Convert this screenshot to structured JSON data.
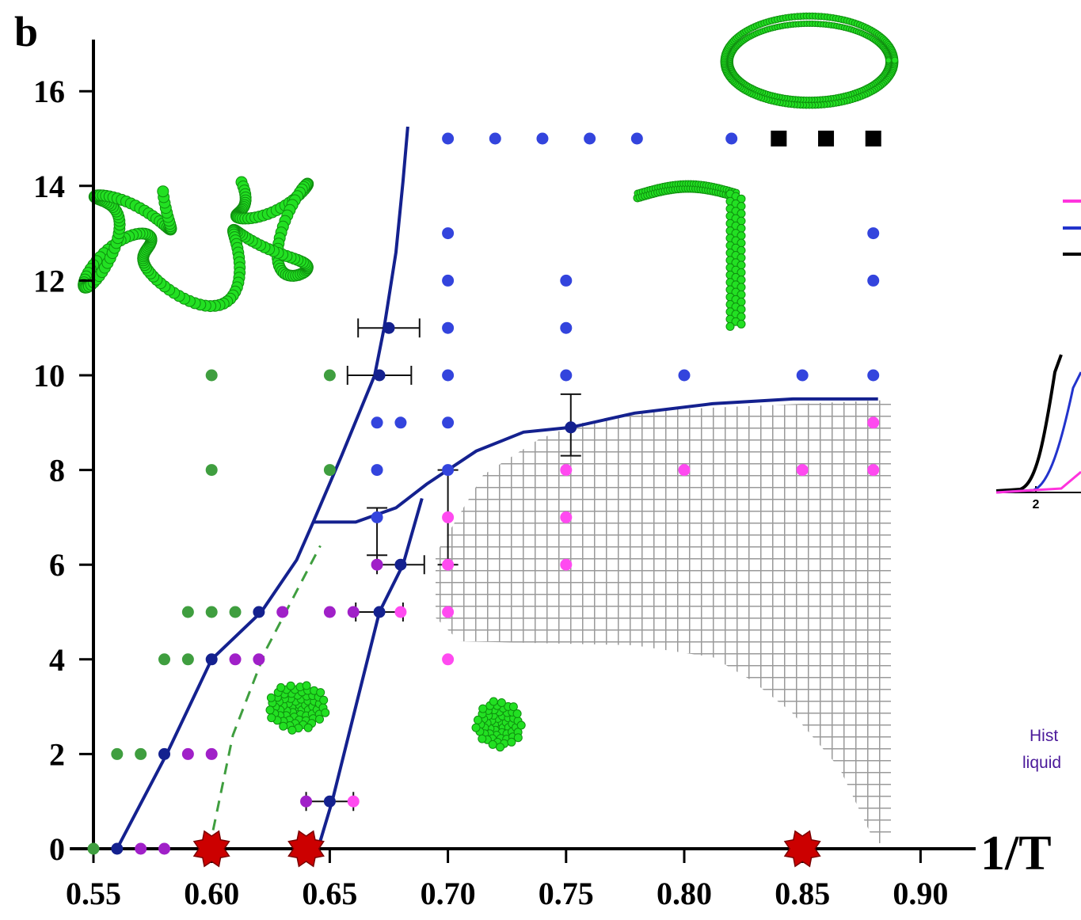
{
  "chart_data": {
    "type": "scatter",
    "panel_label": "b",
    "xlabel": "1/T",
    "xlim": [
      0.54,
      0.92
    ],
    "ylim": [
      0,
      17
    ],
    "xticks": [
      0.55,
      {
        "value": 0.6,
        "label": "0.60"
      },
      0.65,
      {
        "value": 0.7,
        "label": "0.70"
      },
      0.75,
      {
        "value": 0.8,
        "label": "0.80"
      },
      0.85,
      {
        "value": 0.9,
        "label": "0.90"
      }
    ],
    "yticks": [
      0,
      2,
      4,
      6,
      8,
      10,
      12,
      14,
      16
    ],
    "series": [
      {
        "color": "#3f9e3f",
        "marker": "circle",
        "x": [
          0.55,
          0.56,
          0.57,
          0.58,
          0.59,
          0.59,
          0.6,
          0.61,
          0.6,
          0.6,
          0.65,
          0.65
        ],
        "values": [
          0,
          2,
          2,
          4,
          4,
          5,
          5,
          5,
          10,
          8,
          10,
          8
        ]
      },
      {
        "color": "#a020c8",
        "marker": "circle",
        "x": [
          0.57,
          0.58,
          0.59,
          0.6,
          0.61,
          0.62,
          0.63,
          0.65,
          0.66,
          0.64,
          0.67
        ],
        "values": [
          0,
          0,
          2,
          2,
          4,
          4,
          5,
          5,
          5,
          1,
          6
        ]
      },
      {
        "color": "#ff4af0",
        "marker": "circle",
        "x": [
          0.66,
          0.68,
          0.7,
          0.7,
          0.7,
          0.7,
          0.75,
          0.75,
          0.75,
          0.8,
          0.85,
          0.88,
          0.88
        ],
        "values": [
          1,
          5,
          4,
          5,
          6,
          7,
          8,
          7,
          6,
          8,
          8,
          8,
          9
        ]
      },
      {
        "color": "#3344dd",
        "marker": "circle",
        "x": [
          0.67,
          0.67,
          0.68,
          0.7,
          0.7,
          0.7,
          0.7,
          0.7,
          0.7,
          0.7,
          0.72,
          0.74,
          0.76,
          0.78,
          0.82,
          0.75,
          0.75,
          0.75,
          0.8,
          0.85,
          0.88,
          0.88,
          0.88,
          0.67
        ],
        "values": [
          8,
          9,
          9,
          9,
          8,
          10,
          11,
          12,
          13,
          15,
          15,
          15,
          15,
          15,
          15,
          12,
          11,
          10,
          10,
          10,
          10,
          12,
          13,
          7
        ]
      },
      {
        "color": "#000000",
        "marker": "square",
        "x": [
          0.84,
          0.86,
          0.88
        ],
        "values": [
          15,
          15,
          15
        ]
      },
      {
        "color": "#14218f",
        "marker": "circle",
        "x": [
          0.56,
          0.58,
          0.6,
          0.62,
          0.675,
          0.671,
          0.671,
          0.68,
          0.65,
          0.752
        ],
        "values": [
          0,
          2,
          4,
          5,
          11,
          10,
          5,
          6,
          1,
          8.9
        ]
      },
      {
        "color": "#cc0000",
        "marker": "star",
        "x": [
          0.6,
          0.64,
          0.85
        ],
        "values": [
          0,
          0,
          0
        ]
      }
    ],
    "lines": [
      {
        "color": "#14218f",
        "dash": false,
        "x": [
          0.56,
          0.581,
          0.6,
          0.621,
          0.636,
          0.643,
          0.655,
          0.669,
          0.673,
          0.678,
          0.681,
          0.683
        ],
        "values": [
          0,
          2.0,
          4.0,
          5.0,
          6.1,
          6.9,
          8.3,
          10.0,
          11.0,
          12.6,
          14.1,
          15.25
        ]
      },
      {
        "color": "#14218f",
        "dash": false,
        "x": [
          0.643,
          0.661,
          0.678,
          0.691,
          0.712,
          0.732,
          0.752,
          0.779,
          0.812,
          0.846,
          0.882
        ],
        "values": [
          6.9,
          6.9,
          7.2,
          7.7,
          8.4,
          8.8,
          8.9,
          9.2,
          9.4,
          9.5,
          9.5
        ]
      },
      {
        "color": "#14218f",
        "dash": false,
        "x": [
          0.645,
          0.651,
          0.661,
          0.671,
          0.681,
          0.689
        ],
        "values": [
          0,
          1.0,
          3.0,
          5.0,
          6.0,
          7.4
        ]
      },
      {
        "color": "#3f9e3f",
        "dash": true,
        "x": [
          0.599,
          0.609,
          0.623,
          0.646
        ],
        "values": [
          0,
          2.4,
          4.2,
          6.4
        ]
      }
    ],
    "errorbars": [
      {
        "x": 0.675,
        "y": 11,
        "xerr": 0.013
      },
      {
        "x": 0.671,
        "y": 10,
        "xerr": 0.0135
      },
      {
        "x": 0.671,
        "y": 5,
        "xerr": 0.01
      },
      {
        "x": 0.68,
        "y": 6,
        "xerr": 0.01
      },
      {
        "x": 0.65,
        "y": 1,
        "xerr": 0.01
      },
      {
        "x": 0.752,
        "y": 8.95,
        "yerr": 0.65
      },
      {
        "x": 0.7,
        "y": 7.0,
        "yerr": 1.0
      },
      {
        "x": 0.67,
        "y": 6.7,
        "yerr": 0.5
      }
    ],
    "inset": {
      "tick_label": "2",
      "text": [
        "Hist",
        "liquid"
      ]
    }
  }
}
